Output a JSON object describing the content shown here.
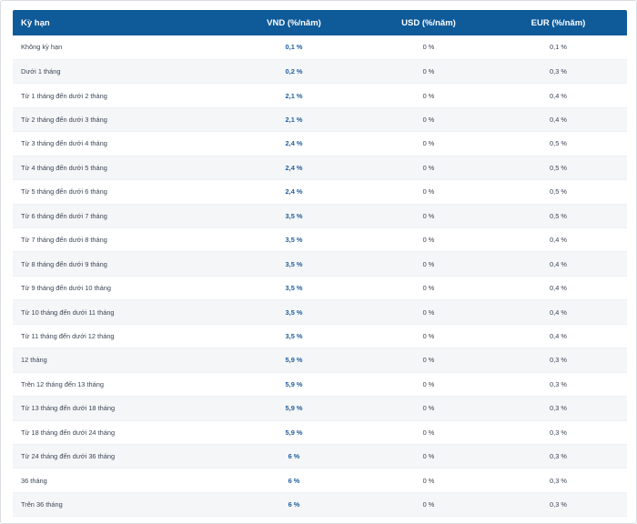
{
  "table": {
    "headers": {
      "term": "Kỳ hạn",
      "vnd": "VND (%/năm)",
      "usd": "USD (%/năm)",
      "eur": "EUR (%/năm)"
    },
    "rows": [
      {
        "term": "Không kỳ hạn",
        "vnd": "0,1 %",
        "usd": "0 %",
        "eur": "0,1 %"
      },
      {
        "term": "Dưới 1 tháng",
        "vnd": "0,2 %",
        "usd": "0 %",
        "eur": "0,3 %"
      },
      {
        "term": "Từ 1 tháng đến dưới 2 tháng",
        "vnd": "2,1 %",
        "usd": "0 %",
        "eur": "0,4 %"
      },
      {
        "term": "Từ 2 tháng đến dưới 3 tháng",
        "vnd": "2,1 %",
        "usd": "0 %",
        "eur": "0,4 %"
      },
      {
        "term": "Từ 3 tháng đến dưới 4 tháng",
        "vnd": "2,4 %",
        "usd": "0 %",
        "eur": "0,5 %"
      },
      {
        "term": "Từ 4 tháng đến dưới 5 tháng",
        "vnd": "2,4 %",
        "usd": "0 %",
        "eur": "0,5 %"
      },
      {
        "term": "Từ 5 tháng đến dưới 6 tháng",
        "vnd": "2,4 %",
        "usd": "0 %",
        "eur": "0,5 %"
      },
      {
        "term": "Từ 6 tháng đến dưới 7 tháng",
        "vnd": "3,5 %",
        "usd": "0 %",
        "eur": "0,5 %"
      },
      {
        "term": "Từ 7 tháng đến dưới 8 tháng",
        "vnd": "3,5 %",
        "usd": "0 %",
        "eur": "0,4 %"
      },
      {
        "term": "Từ 8 tháng đến dưới 9 tháng",
        "vnd": "3,5 %",
        "usd": "0 %",
        "eur": "0,4 %"
      },
      {
        "term": "Từ 9 tháng đến dưới 10 tháng",
        "vnd": "3,5 %",
        "usd": "0 %",
        "eur": "0,4 %"
      },
      {
        "term": "Từ 10 tháng đến dưới 11 tháng",
        "vnd": "3,5 %",
        "usd": "0 %",
        "eur": "0,4 %"
      },
      {
        "term": "Từ 11 tháng đến dưới 12 tháng",
        "vnd": "3,5 %",
        "usd": "0 %",
        "eur": "0,4 %"
      },
      {
        "term": "12 tháng",
        "vnd": "5,9 %",
        "usd": "0 %",
        "eur": "0,3 %"
      },
      {
        "term": "Trên 12 tháng đến 13 tháng",
        "vnd": "5,9 %",
        "usd": "0 %",
        "eur": "0,3 %"
      },
      {
        "term": "Từ 13 tháng đến dưới 18 tháng",
        "vnd": "5,9 %",
        "usd": "0 %",
        "eur": "0,3 %"
      },
      {
        "term": "Từ 18 tháng đến dưới 24 tháng",
        "vnd": "5,9 %",
        "usd": "0 %",
        "eur": "0,3 %"
      },
      {
        "term": "Từ 24 tháng đến dưới 36 tháng",
        "vnd": "6 %",
        "usd": "0 %",
        "eur": "0,3 %"
      },
      {
        "term": "36 tháng",
        "vnd": "6 %",
        "usd": "0 %",
        "eur": "0,3 %"
      },
      {
        "term": "Trên 36 tháng",
        "vnd": "6 %",
        "usd": "0 %",
        "eur": "0,3 %"
      }
    ]
  },
  "colors": {
    "header_background": "#0f5a99",
    "header_text": "#ffffff",
    "vnd_value": "#1f5fa0",
    "row_stripe": "#f5f6f8"
  }
}
